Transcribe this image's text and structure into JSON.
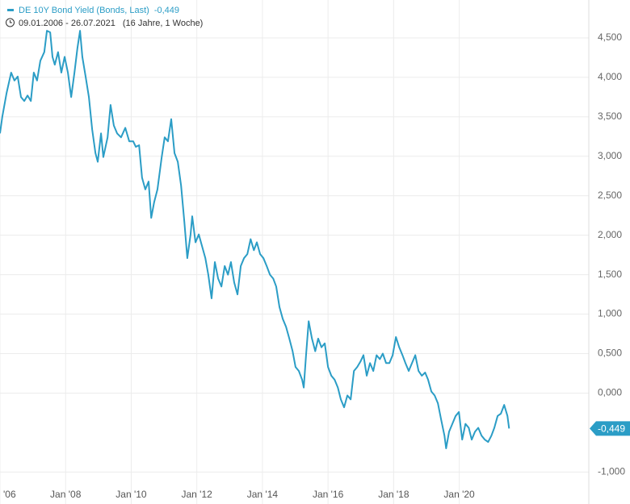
{
  "chart_data": {
    "type": "line",
    "title": "DE 10Y Bond Yield (Bonds, Last)",
    "current_value": {
      "value": -0.449,
      "label": "-0,449"
    },
    "period": "09.01.2006 - 26.07.2021",
    "duration": "(16 Jahre, 1 Woche)",
    "xlim": [
      2006,
      2023.95
    ],
    "xticks": [
      {
        "value": 2006,
        "label": "'06"
      },
      {
        "value": 2008,
        "label": "Jan '08"
      },
      {
        "value": 2010,
        "label": "Jan '10"
      },
      {
        "value": 2012,
        "label": "Jan '12"
      },
      {
        "value": 2014,
        "label": "Jan '14"
      },
      {
        "value": 2016,
        "label": "Jan '16"
      },
      {
        "value": 2018,
        "label": "Jan '18"
      },
      {
        "value": 2020,
        "label": "Jan '20"
      }
    ],
    "ylim": [
      -1.15,
      4.98
    ],
    "yticks": [
      {
        "value": 4.5,
        "label": "4,500"
      },
      {
        "value": 4,
        "label": "4,000"
      },
      {
        "value": 3.5,
        "label": "3,500"
      },
      {
        "value": 3,
        "label": "3,000"
      },
      {
        "value": 2.5,
        "label": "2,500"
      },
      {
        "value": 2,
        "label": "2,000"
      },
      {
        "value": 1.5,
        "label": "1,500"
      },
      {
        "value": 1,
        "label": "1,000"
      },
      {
        "value": 0.5,
        "label": "0,500"
      },
      {
        "value": 0,
        "label": "0,000"
      },
      {
        "value": -1,
        "label": "-1,000"
      }
    ],
    "grid": true,
    "series": [
      {
        "name": "DE 10Y Bond Yield",
        "color": "#2b9dc6",
        "x": [
          2006.0,
          2006.07,
          2006.2,
          2006.34,
          2006.44,
          2006.54,
          2006.64,
          2006.74,
          2006.84,
          2006.94,
          2007.03,
          2007.13,
          2007.23,
          2007.35,
          2007.43,
          2007.53,
          2007.6,
          2007.67,
          2007.77,
          2007.87,
          2007.97,
          2008.07,
          2008.17,
          2008.27,
          2008.36,
          2008.44,
          2008.51,
          2008.61,
          2008.71,
          2008.81,
          2008.91,
          2008.98,
          2009.08,
          2009.15,
          2009.28,
          2009.37,
          2009.47,
          2009.57,
          2009.69,
          2009.82,
          2009.94,
          2010.06,
          2010.14,
          2010.24,
          2010.33,
          2010.43,
          2010.53,
          2010.61,
          2010.7,
          2010.8,
          2010.93,
          2011.02,
          2011.12,
          2011.22,
          2011.32,
          2011.42,
          2011.52,
          2011.62,
          2011.71,
          2011.81,
          2011.86,
          2011.96,
          2012.06,
          2012.16,
          2012.26,
          2012.35,
          2012.45,
          2012.55,
          2012.65,
          2012.75,
          2012.85,
          2012.95,
          2013.04,
          2013.14,
          2013.24,
          2013.34,
          2013.44,
          2013.54,
          2013.64,
          2013.74,
          2013.83,
          2013.93,
          2014.03,
          2014.13,
          2014.23,
          2014.33,
          2014.42,
          2014.52,
          2014.62,
          2014.72,
          2014.82,
          2014.92,
          2015.01,
          2015.11,
          2015.21,
          2015.26,
          2015.33,
          2015.41,
          2015.51,
          2015.61,
          2015.7,
          2015.8,
          2015.9,
          2016.0,
          2016.1,
          2016.2,
          2016.3,
          2016.39,
          2016.49,
          2016.59,
          2016.69,
          2016.79,
          2016.89,
          2016.99,
          2017.08,
          2017.18,
          2017.28,
          2017.38,
          2017.48,
          2017.58,
          2017.67,
          2017.77,
          2017.87,
          2017.97,
          2018.07,
          2018.17,
          2018.27,
          2018.36,
          2018.46,
          2018.56,
          2018.66,
          2018.76,
          2018.86,
          2018.96,
          2019.05,
          2019.15,
          2019.25,
          2019.35,
          2019.45,
          2019.55,
          2019.6,
          2019.69,
          2019.79,
          2019.89,
          2019.99,
          2020.09,
          2020.19,
          2020.29,
          2020.38,
          2020.48,
          2020.58,
          2020.68,
          2020.78,
          2020.88,
          2020.98,
          2021.07,
          2021.17,
          2021.27,
          2021.37,
          2021.47,
          2021.52
        ],
        "values": [
          3.29,
          3.5,
          3.8,
          4.06,
          3.96,
          4.01,
          3.75,
          3.7,
          3.77,
          3.7,
          4.06,
          3.96,
          4.21,
          4.32,
          4.59,
          4.57,
          4.26,
          4.16,
          4.32,
          4.06,
          4.26,
          4.06,
          3.75,
          4.06,
          4.37,
          4.59,
          4.26,
          4.01,
          3.75,
          3.34,
          3.04,
          2.93,
          3.29,
          2.99,
          3.24,
          3.65,
          3.39,
          3.29,
          3.24,
          3.36,
          3.19,
          3.19,
          3.12,
          3.14,
          2.73,
          2.58,
          2.68,
          2.22,
          2.42,
          2.58,
          2.99,
          3.24,
          3.19,
          3.47,
          3.04,
          2.93,
          2.63,
          2.17,
          1.71,
          2.01,
          2.24,
          1.91,
          2.01,
          1.86,
          1.71,
          1.5,
          1.2,
          1.66,
          1.45,
          1.35,
          1.61,
          1.5,
          1.66,
          1.4,
          1.25,
          1.61,
          1.71,
          1.76,
          1.95,
          1.81,
          1.91,
          1.76,
          1.71,
          1.61,
          1.5,
          1.45,
          1.35,
          1.09,
          0.94,
          0.84,
          0.69,
          0.53,
          0.33,
          0.28,
          0.17,
          0.07,
          0.48,
          0.91,
          0.69,
          0.53,
          0.69,
          0.58,
          0.63,
          0.33,
          0.22,
          0.17,
          0.07,
          -0.08,
          -0.18,
          -0.03,
          -0.08,
          0.28,
          0.33,
          0.4,
          0.48,
          0.22,
          0.38,
          0.28,
          0.48,
          0.43,
          0.5,
          0.38,
          0.38,
          0.48,
          0.71,
          0.58,
          0.48,
          0.38,
          0.28,
          0.38,
          0.48,
          0.28,
          0.22,
          0.26,
          0.17,
          0.02,
          -0.03,
          -0.13,
          -0.34,
          -0.54,
          -0.7,
          -0.49,
          -0.39,
          -0.29,
          -0.24,
          -0.59,
          -0.39,
          -0.44,
          -0.59,
          -0.49,
          -0.44,
          -0.54,
          -0.59,
          -0.62,
          -0.54,
          -0.44,
          -0.29,
          -0.26,
          -0.15,
          -0.29,
          -0.449
        ]
      }
    ]
  }
}
